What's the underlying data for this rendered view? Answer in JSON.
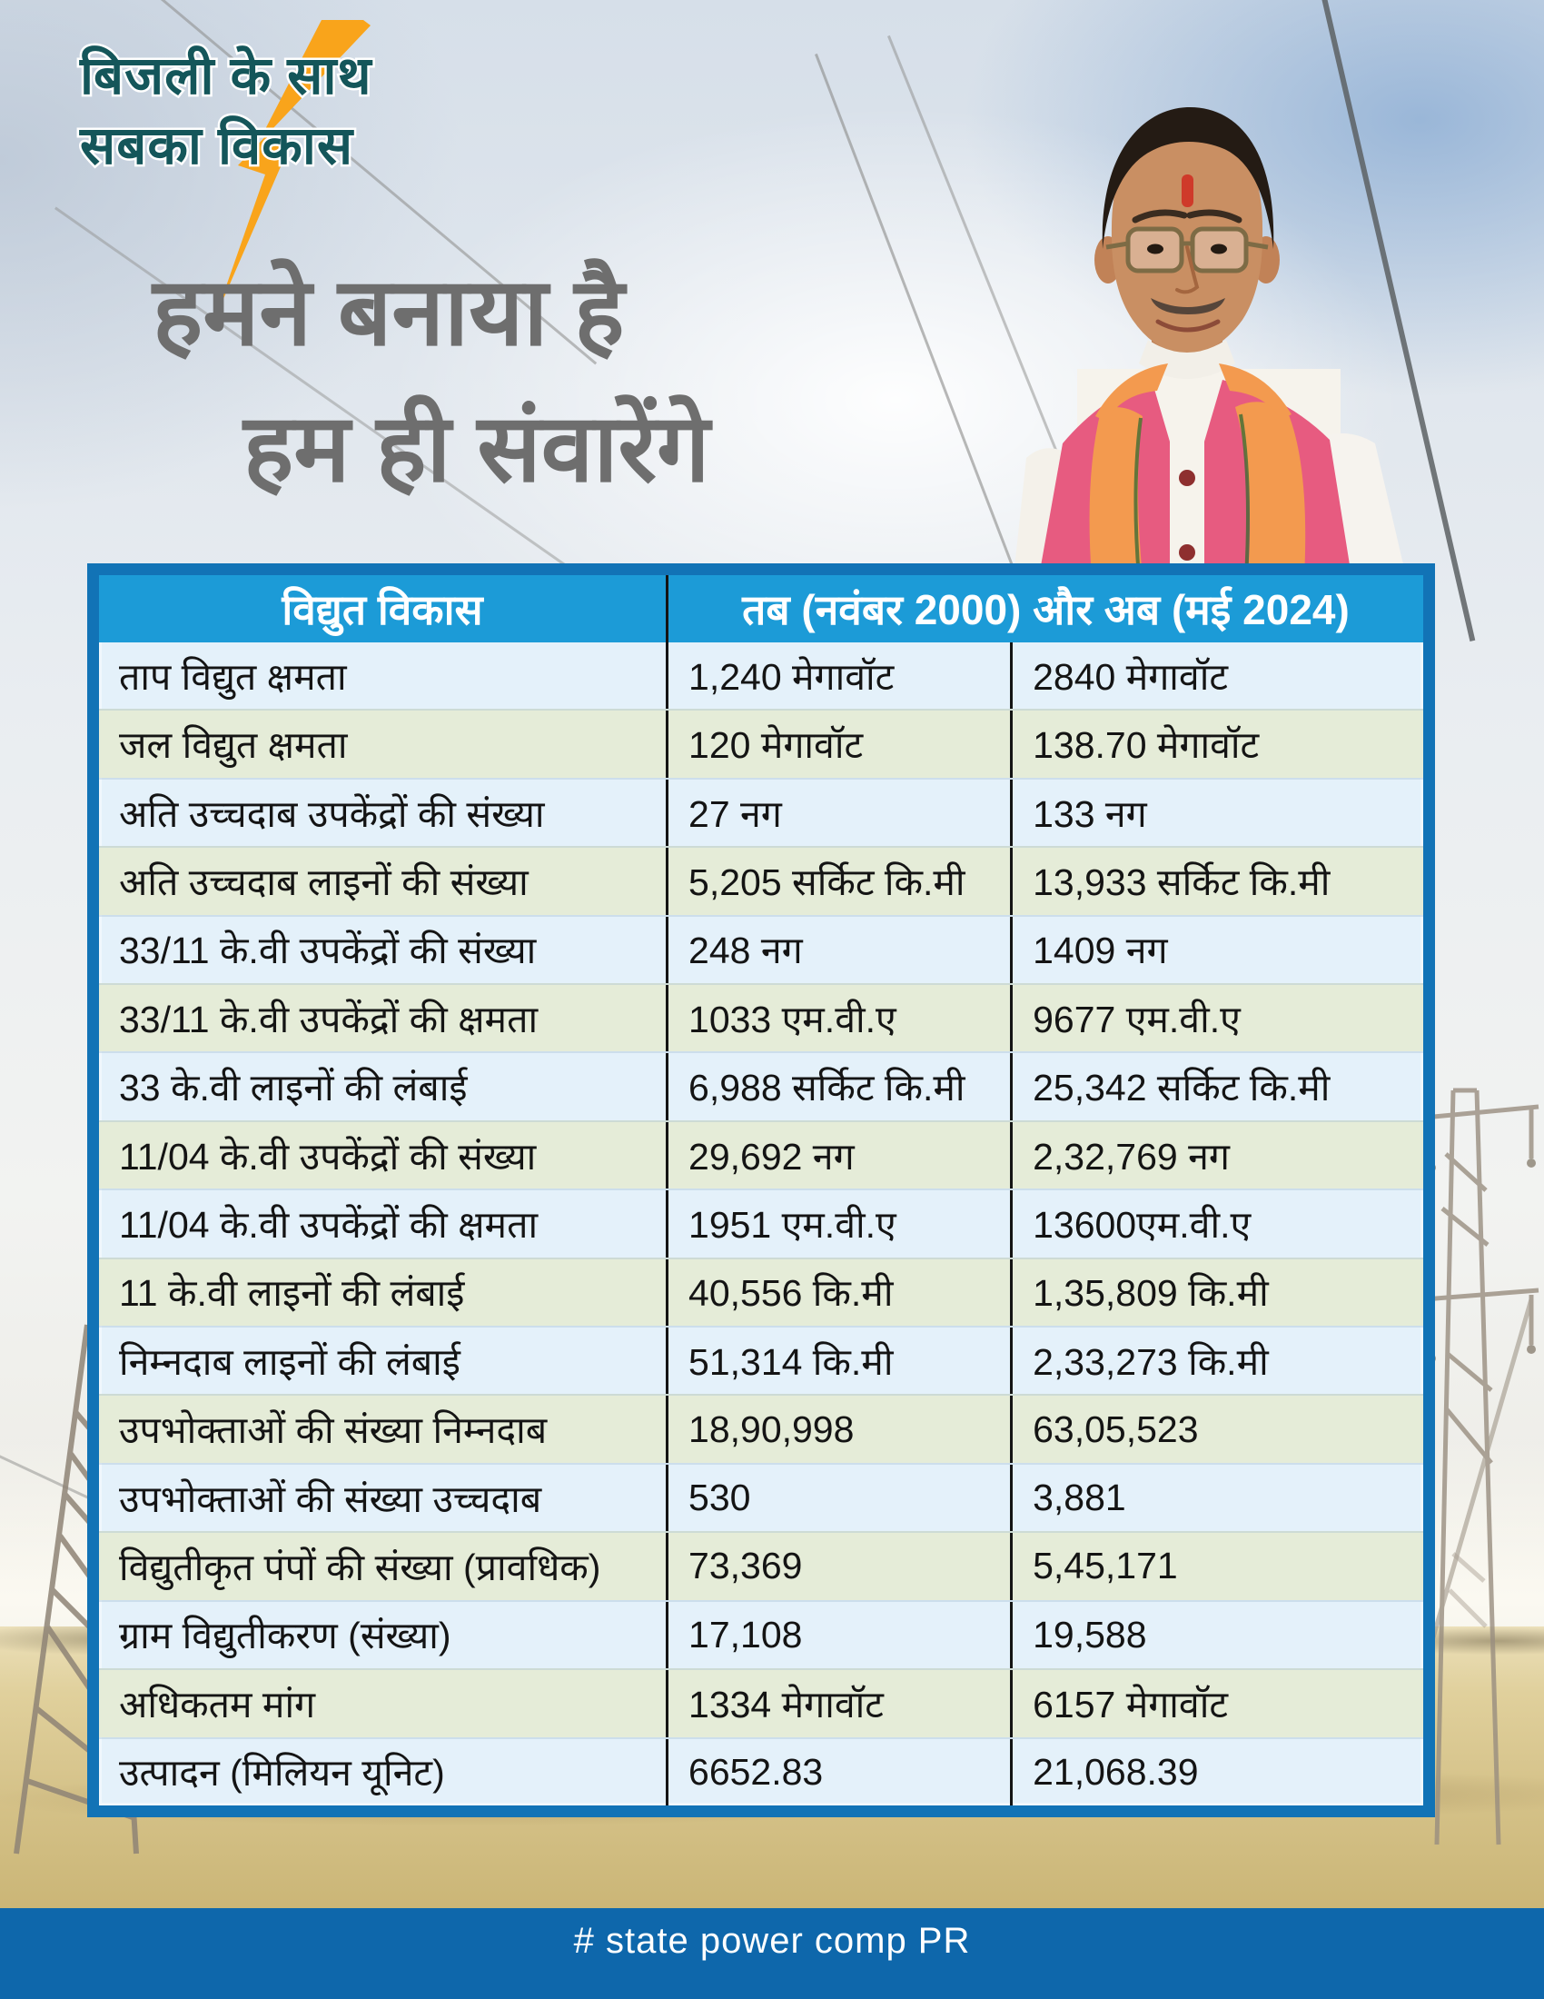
{
  "logo": {
    "line1": "बिजली के साथ",
    "line2": "सबका विकास",
    "text_color": "#14565A",
    "bolt_color": "#F9A41B"
  },
  "headline": {
    "line1": "हमने बनाया है",
    "line2": "हम ही संवारेंगे",
    "color": "#6E6E6E"
  },
  "portrait": {
    "subject": "politician-portrait",
    "jacket_color": "#E75B80",
    "scarf_color": "#F39A4F",
    "kurta_color": "#F6F3EC",
    "tilak_color": "#CF3A2A"
  },
  "table": {
    "header": {
      "col1": "विद्युत विकास",
      "col2": "तब (नवंबर 2000) और अब (मई 2024)"
    },
    "rows": [
      {
        "label": "ताप विद्युत क्षमता",
        "then": "1,240 मेगावॉट",
        "now": "2840 मेगावॉट"
      },
      {
        "label": "जल विद्युत क्षमता",
        "then": "120 मेगावॉट",
        "now": "138.70 मेगावॉट"
      },
      {
        "label": "अति उच्चदाब उपकेंद्रों की संख्या",
        "then": "27 नग",
        "now": "133 नग"
      },
      {
        "label": "अति उच्चदाब लाइनों की संख्या",
        "then": "5,205 सर्किट कि.मी",
        "now": "13,933 सर्किट कि.मी"
      },
      {
        "label": "33/11 के.वी उपकेंद्रों की संख्या",
        "then": "248 नग",
        "now": "1409 नग"
      },
      {
        "label": "33/11 के.वी उपकेंद्रों की क्षमता",
        "then": "1033 एम.वी.ए",
        "now": "9677 एम.वी.ए"
      },
      {
        "label": "33 के.वी लाइनों की लंबाई",
        "then": "6,988 सर्किट कि.मी",
        "now": "25,342 सर्किट कि.मी"
      },
      {
        "label": "11/04 के.वी उपकेंद्रों की संख्या",
        "then": "29,692 नग",
        "now": "2,32,769 नग"
      },
      {
        "label": "11/04 के.वी उपकेंद्रों की क्षमता",
        "then": "1951 एम.वी.ए",
        "now": "13600एम.वी.ए"
      },
      {
        "label": "11 के.वी लाइनों की लंबाई",
        "then": "40,556 कि.मी",
        "now": "1,35,809 कि.मी"
      },
      {
        "label": "निम्नदाब लाइनों की लंबाई",
        "then": "51,314 कि.मी",
        "now": "2,33,273 कि.मी"
      },
      {
        "label": "उपभोक्ताओं की संख्या निम्नदाब",
        "then": "18,90,998",
        "now": "63,05,523"
      },
      {
        "label": "उपभोक्ताओं की संख्या उच्चदाब",
        "then": "530",
        "now": "3,881"
      },
      {
        "label": "विद्युतीकृत पंपों की संख्या (प्रावधिक)",
        "then": "73,369",
        "now": "5,45,171"
      },
      {
        "label": "ग्राम विद्युतीकरण (संख्या)",
        "then": "17,108",
        "now": "19,588"
      },
      {
        "label": "अधिकतम मांग",
        "then": "1334 मेगावॉट",
        "now": "6157 मेगावॉट"
      },
      {
        "label": "उत्पादन (मिलियन यूनिट)",
        "then": "6652.83",
        "now": "21,068.39"
      }
    ],
    "colors": {
      "header_bg": "#1C9BD7",
      "border": "#1273B6",
      "row_blue": "#E4F1FA",
      "row_green": "#E5ECD8",
      "text": "#141414"
    }
  },
  "footer": {
    "text": "# state power comp PR",
    "bg": "#0E67AB"
  }
}
